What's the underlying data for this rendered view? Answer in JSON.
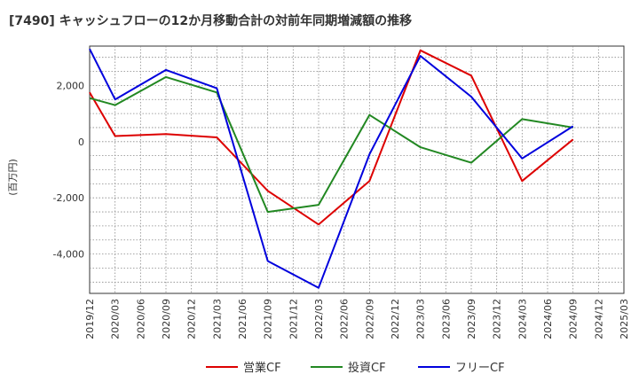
{
  "chart_data": {
    "type": "line",
    "title": "[7490]  キャッシュフローの12か月移動合計の対前年同期増減額の推移",
    "ylabel": "(百万円)",
    "xlabel": "",
    "categories": [
      "2019/12",
      "2020/03",
      "2020/06",
      "2020/09",
      "2020/12",
      "2021/03",
      "2021/06",
      "2021/09",
      "2021/12",
      "2022/03",
      "2022/06",
      "2022/09",
      "2022/12",
      "2023/03",
      "2023/06",
      "2023/09",
      "2023/12",
      "2024/03",
      "2024/06",
      "2024/09",
      "2024/12",
      "2025/03"
    ],
    "ylim": [
      -5400,
      3400
    ],
    "yticks": [
      2000,
      0,
      -2000,
      -4000
    ],
    "ytick_labels": [
      "2,000",
      "0",
      "-2,000",
      "-4,000"
    ],
    "grid": true,
    "legend_position": "bottom",
    "series": [
      {
        "name": "営業CF",
        "color": "#dd0000",
        "points": [
          [
            "2019/12",
            1750
          ],
          [
            "2020/03",
            200
          ],
          [
            "2020/09",
            270
          ],
          [
            "2021/03",
            150
          ],
          [
            "2021/09",
            -1750
          ],
          [
            "2022/03",
            -2950
          ],
          [
            "2022/09",
            -1400
          ],
          [
            "2023/03",
            3250
          ],
          [
            "2023/09",
            2350
          ],
          [
            "2024/03",
            -1400
          ],
          [
            "2024/09",
            80
          ]
        ]
      },
      {
        "name": "投資CF",
        "color": "#228822",
        "points": [
          [
            "2019/12",
            1550
          ],
          [
            "2020/03",
            1300
          ],
          [
            "2020/09",
            2300
          ],
          [
            "2021/03",
            1750
          ],
          [
            "2021/09",
            -2500
          ],
          [
            "2022/03",
            -2250
          ],
          [
            "2022/09",
            950
          ],
          [
            "2023/03",
            -200
          ],
          [
            "2023/09",
            -750
          ],
          [
            "2024/03",
            800
          ],
          [
            "2024/09",
            500
          ]
        ]
      },
      {
        "name": "フリーCF",
        "color": "#0000dd",
        "points": [
          [
            "2019/12",
            3300
          ],
          [
            "2020/03",
            1500
          ],
          [
            "2020/09",
            2550
          ],
          [
            "2021/03",
            1900
          ],
          [
            "2021/09",
            -4250
          ],
          [
            "2022/03",
            -5200
          ],
          [
            "2022/09",
            -450
          ],
          [
            "2023/03",
            3050
          ],
          [
            "2023/09",
            1600
          ],
          [
            "2024/03",
            -600
          ],
          [
            "2024/09",
            550
          ]
        ]
      }
    ]
  }
}
